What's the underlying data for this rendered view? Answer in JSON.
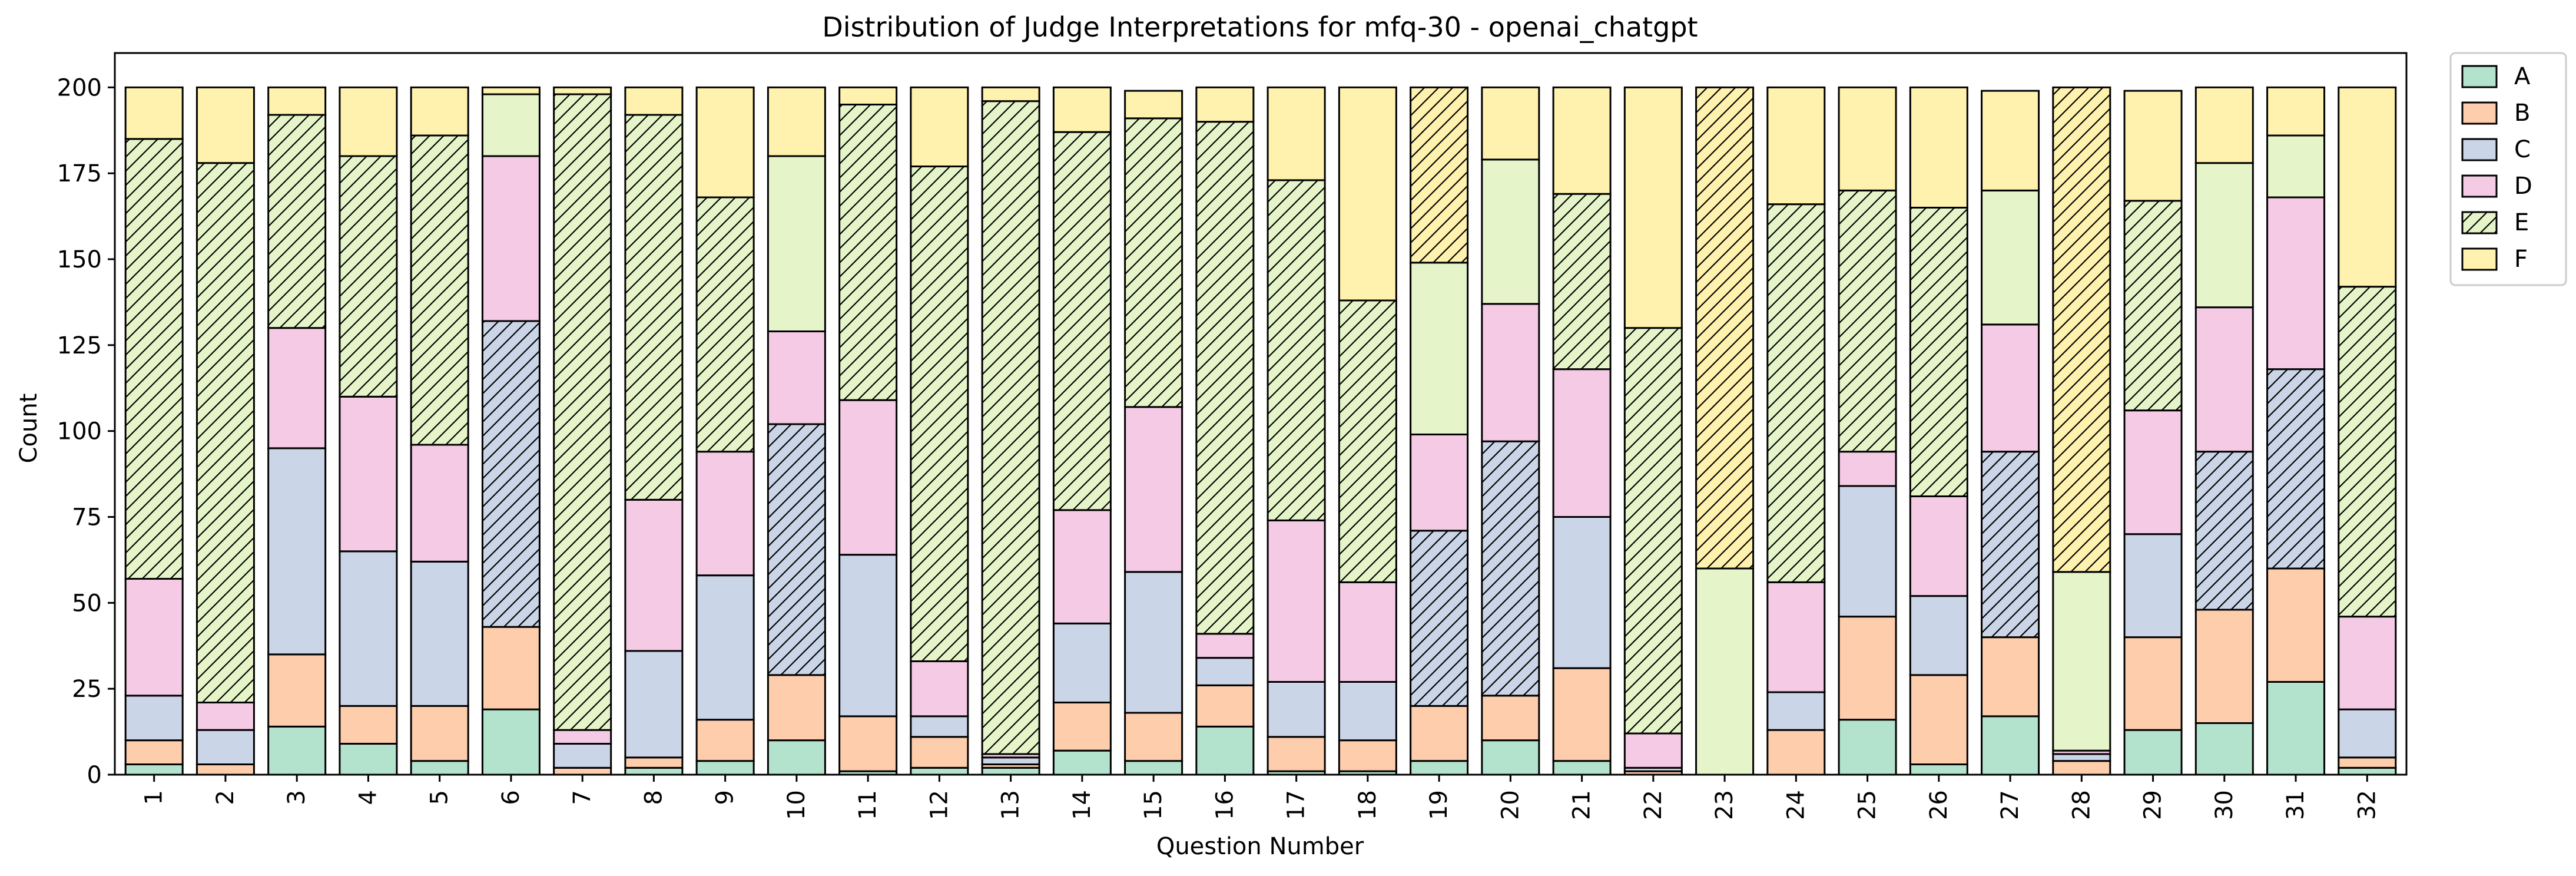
{
  "chart_data": {
    "type": "bar",
    "stacked": true,
    "title": "Distribution of Judge Interpretations for mfq-30 - openai_chatgpt",
    "xlabel": "Question Number",
    "ylabel": "Count",
    "ylim": [
      0,
      210
    ],
    "yticks": [
      0,
      25,
      50,
      75,
      100,
      125,
      150,
      175,
      200
    ],
    "grid": false,
    "legend_position": "outside-top-right",
    "categories": [
      "1",
      "2",
      "3",
      "4",
      "5",
      "6",
      "7",
      "8",
      "9",
      "10",
      "11",
      "12",
      "13",
      "14",
      "15",
      "16",
      "17",
      "18",
      "19",
      "20",
      "21",
      "22",
      "23",
      "24",
      "25",
      "26",
      "27",
      "28",
      "29",
      "30",
      "31",
      "32"
    ],
    "series": [
      {
        "name": "A",
        "color": "#b3e2cd",
        "values": [
          3,
          0,
          14,
          9,
          4,
          19,
          0,
          2,
          4,
          10,
          1,
          2,
          2,
          7,
          4,
          14,
          1,
          1,
          4,
          10,
          4,
          0,
          0,
          0,
          16,
          3,
          17,
          0,
          13,
          15,
          27,
          2
        ]
      },
      {
        "name": "B",
        "color": "#fdcdac",
        "values": [
          7,
          3,
          21,
          11,
          16,
          24,
          2,
          3,
          12,
          19,
          16,
          9,
          1,
          14,
          14,
          12,
          10,
          9,
          16,
          13,
          27,
          1,
          0,
          13,
          30,
          26,
          23,
          4,
          27,
          33,
          33,
          3
        ]
      },
      {
        "name": "C",
        "color": "#cbd5e8",
        "values": [
          13,
          10,
          60,
          45,
          42,
          89,
          7,
          31,
          42,
          73,
          47,
          6,
          2,
          23,
          41,
          8,
          16,
          17,
          51,
          74,
          44,
          1,
          0,
          11,
          38,
          23,
          54,
          2,
          30,
          46,
          58,
          14
        ]
      },
      {
        "name": "D",
        "color": "#f4cae4",
        "values": [
          34,
          8,
          35,
          45,
          34,
          48,
          4,
          44,
          36,
          27,
          45,
          16,
          1,
          33,
          48,
          7,
          47,
          29,
          28,
          40,
          43,
          10,
          0,
          32,
          10,
          29,
          37,
          1,
          36,
          42,
          50,
          27
        ]
      },
      {
        "name": "E",
        "color": "#e6f5c9",
        "values": [
          128,
          157,
          62,
          70,
          90,
          18,
          185,
          112,
          74,
          51,
          86,
          144,
          190,
          110,
          84,
          149,
          99,
          82,
          50,
          42,
          51,
          118,
          60,
          110,
          76,
          84,
          39,
          52,
          61,
          42,
          18,
          96
        ]
      },
      {
        "name": "F",
        "color": "#fff2ae",
        "values": [
          15,
          22,
          8,
          20,
          14,
          2,
          2,
          8,
          32,
          20,
          5,
          23,
          4,
          13,
          8,
          10,
          27,
          62,
          51,
          21,
          31,
          70,
          140,
          34,
          30,
          35,
          29,
          141,
          32,
          22,
          14,
          58
        ]
      }
    ],
    "hatched": {
      "1": [
        "E"
      ],
      "2": [
        "E"
      ],
      "3": [
        "E"
      ],
      "4": [
        "E"
      ],
      "5": [
        "E"
      ],
      "6": [
        "C"
      ],
      "7": [
        "E"
      ],
      "8": [
        "E"
      ],
      "9": [
        "E"
      ],
      "10": [
        "C"
      ],
      "11": [
        "E"
      ],
      "12": [
        "E"
      ],
      "13": [
        "E"
      ],
      "14": [
        "E"
      ],
      "15": [
        "E"
      ],
      "16": [
        "E"
      ],
      "17": [
        "E"
      ],
      "18": [
        "E"
      ],
      "19": [
        "C",
        "F"
      ],
      "20": [
        "C"
      ],
      "21": [
        "E"
      ],
      "22": [
        "E"
      ],
      "23": [
        "F"
      ],
      "24": [
        "E"
      ],
      "25": [
        "E"
      ],
      "26": [
        "E"
      ],
      "27": [
        "C"
      ],
      "28": [
        "F"
      ],
      "29": [
        "E"
      ],
      "30": [
        "C"
      ],
      "31": [
        "C"
      ],
      "32": [
        "E"
      ]
    },
    "legend_hatched": [
      "E"
    ]
  }
}
